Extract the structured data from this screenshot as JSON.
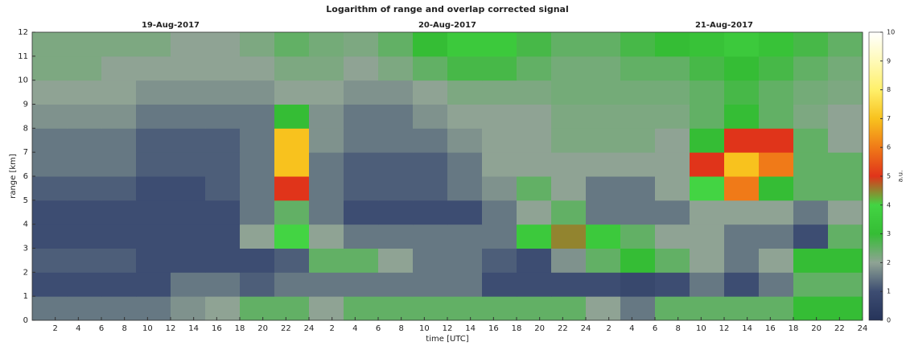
{
  "chart_data": {
    "type": "heatmap",
    "title": "Logarithm of range and overlap corrected signal",
    "dates": [
      {
        "label": "19-Aug-2017",
        "value": 12
      },
      {
        "label": "20-Aug-2017",
        "value": 36
      },
      {
        "label": "21-Aug-2017",
        "value": 60
      }
    ],
    "x_label": "time [UTC]",
    "y_label": "range [km]",
    "colorbar_label": "a.u.",
    "xlim": [
      0,
      72
    ],
    "ylim": [
      0,
      12
    ],
    "clim": [
      0,
      10
    ],
    "xticks": [
      2,
      4,
      6,
      8,
      10,
      12,
      14,
      16,
      18,
      20,
      22,
      24,
      {
        "value": 26,
        "label": "2"
      },
      {
        "value": 28,
        "label": "4"
      },
      {
        "value": 30,
        "label": "6"
      },
      {
        "value": 32,
        "label": "8"
      },
      {
        "value": 34,
        "label": "10"
      },
      {
        "value": 36,
        "label": "12"
      },
      {
        "value": 38,
        "label": "14"
      },
      {
        "value": 40,
        "label": "16"
      },
      {
        "value": 42,
        "label": "18"
      },
      {
        "value": 44,
        "label": "20"
      },
      {
        "value": 46,
        "label": "22"
      },
      {
        "value": 48,
        "label": "24"
      },
      {
        "value": 50,
        "label": "2"
      },
      {
        "value": 52,
        "label": "4"
      },
      {
        "value": 54,
        "label": "6"
      },
      {
        "value": 56,
        "label": "8"
      },
      {
        "value": 58,
        "label": "10"
      },
      {
        "value": 60,
        "label": "12"
      },
      {
        "value": 62,
        "label": "14"
      },
      {
        "value": 64,
        "label": "16"
      },
      {
        "value": 66,
        "label": "18"
      },
      {
        "value": 68,
        "label": "20"
      },
      {
        "value": 70,
        "label": "22"
      },
      {
        "value": 72,
        "label": "24"
      }
    ],
    "yticks": [
      0,
      1,
      2,
      3,
      4,
      5,
      6,
      7,
      8,
      9,
      10,
      11,
      12
    ],
    "cticks": [
      0,
      1,
      2,
      3,
      4,
      5,
      6,
      7,
      8,
      9,
      10
    ],
    "colorscale": [
      "#26345a",
      "#3d4d72",
      "#8fa394",
      "#35bd35",
      "#43d443",
      "#e0341a",
      "#f07a18",
      "#f8c21e",
      "#fff06a",
      "#fffab8",
      "#ffffff"
    ],
    "z": [
      [
        1.5,
        1.5,
        1.5,
        1.5,
        1.8,
        2,
        2.5,
        2.5,
        2,
        2.5,
        2.5,
        2.5,
        2.5,
        2.5,
        2.5,
        2.5,
        2,
        1.5,
        2.5,
        2.5,
        2.5,
        2.5,
        3,
        3
      ],
      [
        1,
        1,
        1,
        1,
        1.5,
        1.5,
        1.2,
        1.5,
        1.5,
        1.5,
        1.5,
        1.5,
        1.5,
        1,
        1,
        1,
        1,
        0.8,
        1,
        1.5,
        1,
        1.5,
        2.5,
        2.5
      ],
      [
        1.2,
        1.2,
        1.2,
        1,
        1,
        1,
        1,
        1.2,
        2.5,
        2.5,
        2,
        1.5,
        1.5,
        1.2,
        1,
        1.8,
        2.5,
        3,
        2.5,
        2,
        1.5,
        2,
        3,
        3
      ],
      [
        1,
        1,
        1,
        1,
        1,
        1,
        2,
        4,
        2,
        1.5,
        1.5,
        1.5,
        1.5,
        1.5,
        3.5,
        4.5,
        3.5,
        2.5,
        2,
        2,
        1.5,
        1.5,
        1,
        2.5
      ],
      [
        1,
        1,
        1,
        1,
        1,
        1,
        1.5,
        2.5,
        1.5,
        1,
        1,
        1,
        1,
        1.5,
        2,
        2.5,
        1.5,
        1.5,
        1.5,
        2,
        2,
        2,
        1.5,
        2
      ],
      [
        1.2,
        1.2,
        1.2,
        1,
        1,
        1.2,
        1.5,
        5,
        1.5,
        1.2,
        1.2,
        1.2,
        1.5,
        1.8,
        2.5,
        2,
        1.5,
        1.5,
        2,
        4,
        6,
        3,
        2.5,
        2.5
      ],
      [
        1.5,
        1.5,
        1.5,
        1.2,
        1.2,
        1.2,
        1.5,
        7,
        1.5,
        1.2,
        1.2,
        1.2,
        1.5,
        2,
        2,
        2,
        2,
        2,
        2,
        5,
        7,
        6,
        2.5,
        2.5
      ],
      [
        1.5,
        1.5,
        1.5,
        1.2,
        1.2,
        1.2,
        1.5,
        7,
        1.8,
        1.5,
        1.5,
        1.5,
        1.8,
        2,
        2,
        2.2,
        2.2,
        2.2,
        2,
        3,
        5,
        5,
        2.5,
        2
      ],
      [
        1.8,
        1.8,
        1.8,
        1.5,
        1.5,
        1.5,
        1.5,
        3,
        1.8,
        1.5,
        1.5,
        1.8,
        2,
        2,
        2,
        2.2,
        2.2,
        2.2,
        2.2,
        2.5,
        3,
        2.5,
        2.2,
        2
      ],
      [
        2,
        2,
        2,
        1.8,
        1.8,
        1.8,
        1.8,
        2,
        2,
        1.8,
        1.8,
        2,
        2.2,
        2.2,
        2.2,
        2.3,
        2.3,
        2.3,
        2.3,
        2.5,
        2.8,
        2.5,
        2.3,
        2.2
      ],
      [
        2.2,
        2.2,
        2,
        2,
        2,
        2,
        2,
        2.2,
        2.2,
        2,
        2.2,
        2.5,
        2.8,
        2.8,
        2.5,
        2.3,
        2.3,
        2.5,
        2.5,
        2.8,
        3,
        2.8,
        2.5,
        2.3
      ],
      [
        2.2,
        2.2,
        2.2,
        2.2,
        2,
        2,
        2.2,
        2.5,
        2.3,
        2.2,
        2.5,
        3,
        3.5,
        3.5,
        2.8,
        2.5,
        2.5,
        2.8,
        3,
        3.2,
        3.5,
        3.2,
        2.8,
        2.5
      ]
    ]
  }
}
